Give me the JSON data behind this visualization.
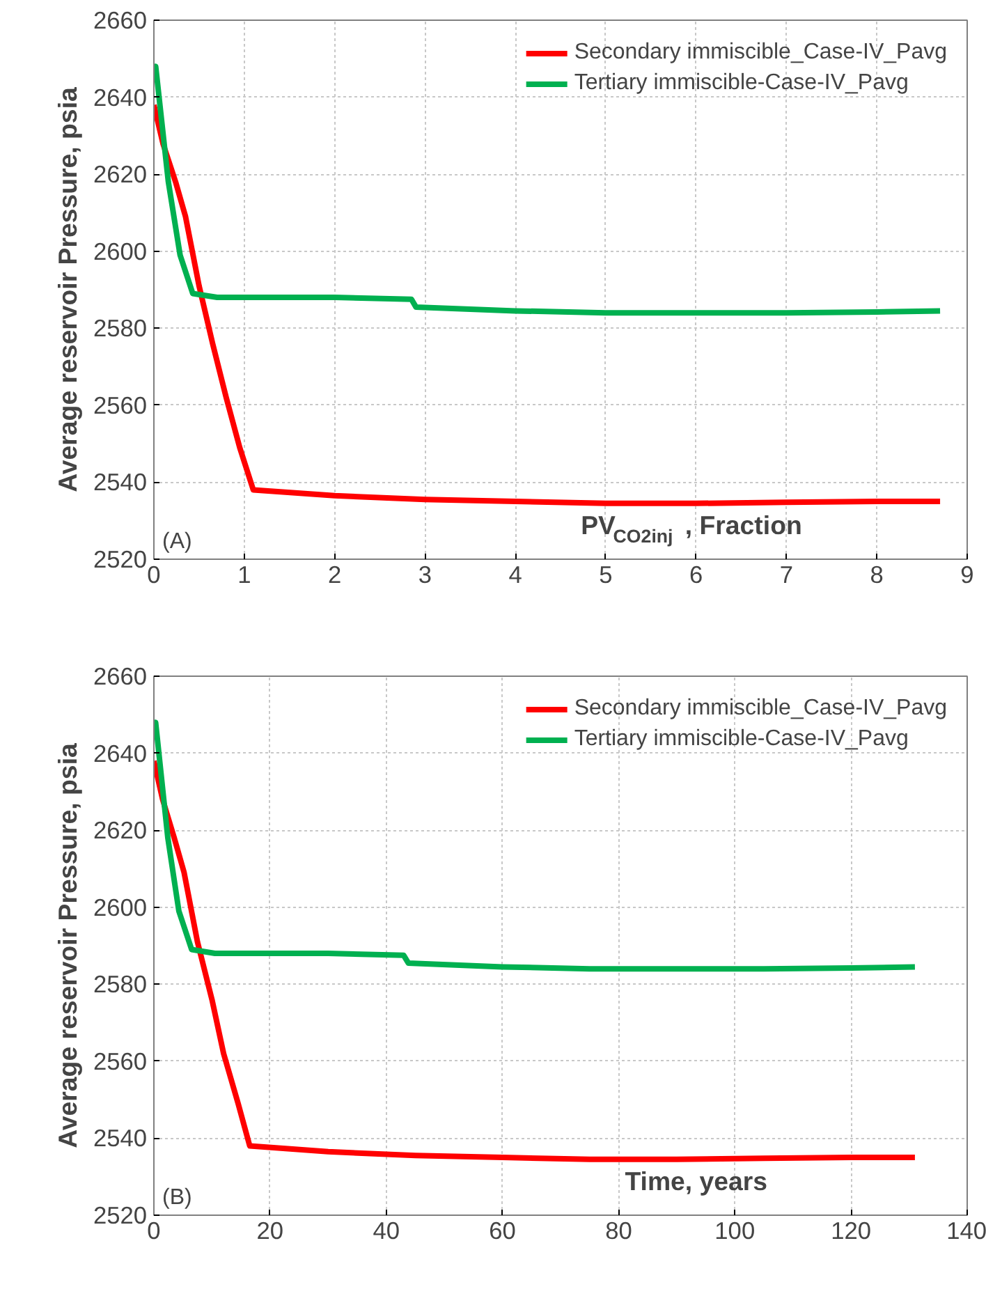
{
  "chart_data": [
    {
      "type": "line",
      "xlabel": "PV$_{CO2inj}$, Fraction",
      "ylabel": "Average reservoir Pressure, psia",
      "xlim": [
        0,
        9
      ],
      "ylim": [
        2520,
        2660
      ],
      "xticks": [
        0,
        1,
        2,
        3,
        4,
        5,
        6,
        7,
        8,
        9
      ],
      "yticks": [
        2520,
        2540,
        2560,
        2580,
        2600,
        2620,
        2640,
        2660
      ],
      "grid": true,
      "legend": "top right",
      "annotations": [
        "(A)"
      ],
      "series": [
        {
          "name": "Secondary immiscible_Case-IV_Pavg",
          "color": "#ff0000",
          "x": [
            0,
            0.1,
            0.24,
            0.35,
            0.5,
            0.65,
            0.8,
            0.95,
            1.1,
            2,
            3,
            4,
            5,
            6,
            7,
            8,
            8.7
          ],
          "values": [
            2638,
            2628,
            2618,
            2609,
            2591,
            2576,
            2562,
            2549,
            2538,
            2536.5,
            2535.5,
            2535,
            2534.5,
            2534.5,
            2534.8,
            2535,
            2535
          ]
        },
        {
          "name": "Tertiary immiscible-Case-IV_Pavg",
          "color": "#00b050",
          "x": [
            0,
            0.02,
            0.16,
            0.29,
            0.43,
            0.7,
            1,
            2,
            2.85,
            2.9,
            4,
            5,
            6,
            7,
            8,
            8.7
          ],
          "values": [
            2646,
            2648,
            2618,
            2599,
            2589,
            2588,
            2588,
            2588,
            2587.5,
            2585.5,
            2584.5,
            2584,
            2584,
            2584,
            2584.2,
            2584.5
          ]
        }
      ]
    },
    {
      "type": "line",
      "xlabel": "Time, years",
      "ylabel": "Average reservoir Pressure, psia",
      "xlim": [
        0,
        140
      ],
      "ylim": [
        2520,
        2660
      ],
      "xticks": [
        0,
        20,
        40,
        60,
        80,
        100,
        120,
        140
      ],
      "yticks": [
        2520,
        2540,
        2560,
        2580,
        2600,
        2620,
        2640,
        2660
      ],
      "grid": true,
      "legend": "top right",
      "annotations": [
        "(B)"
      ],
      "series": [
        {
          "name": "Secondary immiscible_Case-IV_Pavg",
          "color": "#ff0000",
          "x": [
            0,
            1.5,
            3.5,
            5.2,
            7.5,
            10,
            12,
            14.5,
            16.5,
            30,
            45,
            60,
            75,
            90,
            105,
            120,
            131
          ],
          "values": [
            2638,
            2628,
            2618,
            2609,
            2591,
            2576,
            2562,
            2549,
            2538,
            2536.5,
            2535.5,
            2535,
            2534.5,
            2534.5,
            2534.8,
            2535,
            2535
          ]
        },
        {
          "name": "Tertiary immiscible-Case-IV_Pavg",
          "color": "#00b050",
          "x": [
            0,
            0.3,
            2.4,
            4.3,
            6.5,
            10.5,
            15,
            30,
            43,
            43.8,
            60,
            75,
            90,
            105,
            120,
            131
          ],
          "values": [
            2646,
            2648,
            2618,
            2599,
            2589,
            2588,
            2588,
            2588,
            2587.5,
            2585.5,
            2584.5,
            2584,
            2584,
            2584,
            2584.2,
            2584.5
          ]
        }
      ]
    }
  ]
}
